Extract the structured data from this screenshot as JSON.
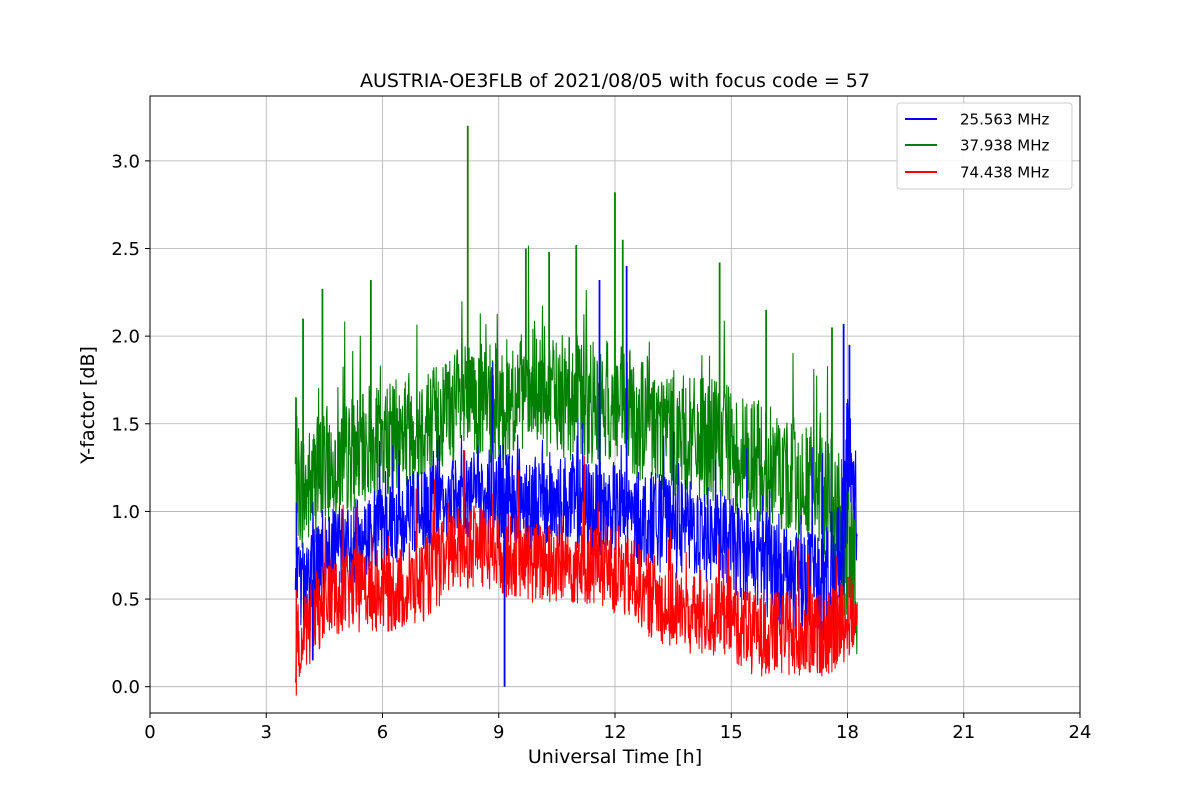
{
  "chart_data": {
    "type": "line",
    "title": "AUSTRIA-OE3FLB of 2021/08/05 with focus code = 57",
    "xlabel": "Universal Time [h]",
    "ylabel": "Y-factor [dB]",
    "xlim": [
      0,
      24
    ],
    "ylim": [
      -0.15,
      3.37
    ],
    "xticks": [
      0,
      3,
      6,
      9,
      12,
      15,
      18,
      21,
      24
    ],
    "xtick_labels": [
      "0",
      "3",
      "6",
      "9",
      "12",
      "15",
      "18",
      "21",
      "24"
    ],
    "yticks": [
      0.0,
      0.5,
      1.0,
      1.5,
      2.0,
      2.5,
      3.0
    ],
    "ytick_labels": [
      "0.0",
      "0.5",
      "1.0",
      "1.5",
      "2.0",
      "2.5",
      "3.0"
    ],
    "grid": true,
    "legend_position": "top-right",
    "series": [
      {
        "name": "25.563 MHz",
        "color": "#0000ff",
        "x": [
          3.75,
          4.0,
          4.5,
          5.0,
          5.5,
          6.0,
          6.5,
          7.0,
          7.5,
          8.0,
          8.5,
          9.0,
          9.5,
          10.0,
          10.5,
          11.0,
          11.5,
          12.0,
          12.5,
          13.0,
          13.5,
          14.0,
          14.5,
          15.0,
          15.5,
          16.0,
          16.5,
          17.0,
          17.5,
          17.8,
          18.0,
          18.25
        ],
        "y": [
          0.7,
          0.55,
          0.7,
          0.8,
          0.85,
          0.9,
          0.95,
          1.0,
          1.05,
          1.1,
          1.1,
          1.1,
          1.1,
          1.05,
          1.05,
          1.05,
          1.0,
          1.0,
          0.95,
          0.95,
          0.9,
          0.9,
          0.85,
          0.8,
          0.75,
          0.7,
          0.65,
          0.6,
          0.55,
          0.7,
          1.2,
          0.9
        ],
        "spread": [
          0.35,
          0.35,
          0.35,
          0.3,
          0.3,
          0.3,
          0.3,
          0.3,
          0.3,
          0.3,
          0.35,
          0.4,
          0.35,
          0.35,
          0.35,
          0.35,
          0.35,
          0.35,
          0.35,
          0.35,
          0.35,
          0.35,
          0.35,
          0.35,
          0.35,
          0.4,
          0.4,
          0.4,
          0.45,
          0.5,
          0.6,
          0.5
        ]
      },
      {
        "name": "37.938 MHz",
        "color": "#008000",
        "x": [
          3.75,
          4.0,
          4.5,
          5.0,
          5.5,
          6.0,
          6.5,
          7.0,
          7.5,
          8.0,
          8.5,
          9.0,
          9.5,
          10.0,
          10.5,
          11.0,
          11.5,
          12.0,
          12.5,
          13.0,
          13.5,
          14.0,
          14.5,
          15.0,
          15.5,
          16.0,
          16.5,
          17.0,
          17.5,
          17.8,
          18.0,
          18.25
        ],
        "y": [
          1.2,
          1.1,
          1.25,
          1.3,
          1.35,
          1.4,
          1.45,
          1.5,
          1.55,
          1.6,
          1.6,
          1.6,
          1.65,
          1.65,
          1.65,
          1.65,
          1.6,
          1.6,
          1.55,
          1.5,
          1.45,
          1.4,
          1.4,
          1.35,
          1.3,
          1.25,
          1.2,
          1.15,
          1.05,
          0.9,
          0.8,
          0.6
        ],
        "spread": [
          0.45,
          0.45,
          0.45,
          0.4,
          0.4,
          0.4,
          0.4,
          0.4,
          0.4,
          0.45,
          0.45,
          0.45,
          0.45,
          0.45,
          0.45,
          0.45,
          0.45,
          0.45,
          0.45,
          0.45,
          0.45,
          0.45,
          0.45,
          0.45,
          0.45,
          0.45,
          0.45,
          0.45,
          0.5,
          0.6,
          0.6,
          0.55
        ]
      },
      {
        "name": "74.438 MHz",
        "color": "#ff0000",
        "x": [
          3.75,
          4.0,
          4.5,
          5.0,
          5.5,
          6.0,
          6.5,
          7.0,
          7.5,
          8.0,
          8.5,
          9.0,
          9.5,
          10.0,
          10.5,
          11.0,
          11.5,
          12.0,
          12.5,
          13.0,
          13.5,
          14.0,
          14.5,
          15.0,
          15.5,
          16.0,
          16.5,
          17.0,
          17.5,
          17.8,
          18.0,
          18.25
        ],
        "y": [
          0.25,
          0.3,
          0.5,
          0.55,
          0.55,
          0.55,
          0.55,
          0.6,
          0.7,
          0.8,
          0.8,
          0.75,
          0.75,
          0.7,
          0.7,
          0.7,
          0.7,
          0.65,
          0.6,
          0.5,
          0.45,
          0.4,
          0.4,
          0.4,
          0.3,
          0.3,
          0.3,
          0.3,
          0.3,
          0.35,
          0.4,
          0.45
        ]
      }
    ],
    "spikes": [
      {
        "series": 1,
        "x": 8.2,
        "y": 3.2
      },
      {
        "series": 1,
        "x": 12.0,
        "y": 2.82
      },
      {
        "series": 1,
        "x": 12.2,
        "y": 2.55
      },
      {
        "series": 1,
        "x": 11.0,
        "y": 2.52
      },
      {
        "series": 1,
        "x": 9.7,
        "y": 2.5
      },
      {
        "series": 1,
        "x": 10.3,
        "y": 2.48
      },
      {
        "series": 1,
        "x": 14.7,
        "y": 2.42
      },
      {
        "series": 1,
        "x": 5.7,
        "y": 2.32
      },
      {
        "series": 1,
        "x": 4.45,
        "y": 2.27
      },
      {
        "series": 1,
        "x": 3.95,
        "y": 2.1
      },
      {
        "series": 1,
        "x": 15.9,
        "y": 2.15
      },
      {
        "series": 1,
        "x": 17.6,
        "y": 2.05
      },
      {
        "series": 0,
        "x": 12.3,
        "y": 2.4
      },
      {
        "series": 0,
        "x": 11.6,
        "y": 2.32
      },
      {
        "series": 0,
        "x": 17.9,
        "y": 2.07
      },
      {
        "series": 0,
        "x": 18.05,
        "y": 1.95
      },
      {
        "series": 0,
        "x": 9.15,
        "y": 0.0
      },
      {
        "series": 0,
        "x": 4.2,
        "y": 0.15
      },
      {
        "series": 2,
        "x": 8.1,
        "y": 1.35
      }
    ]
  }
}
